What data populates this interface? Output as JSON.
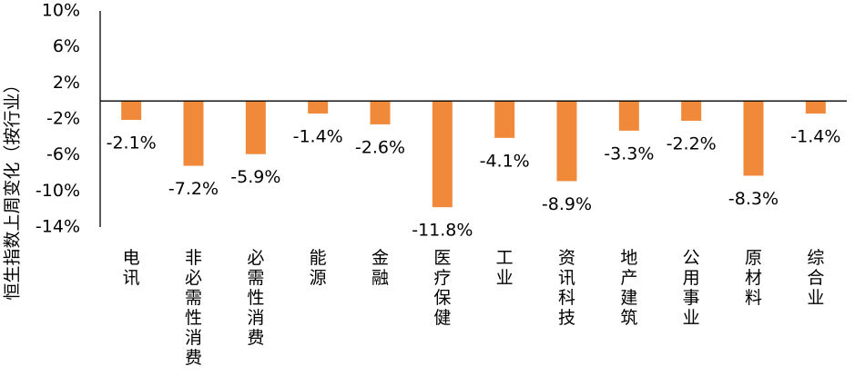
{
  "chart_data": {
    "type": "bar",
    "ylabel": "恒生指数上周变化（按行业）",
    "xlabel": "",
    "ylim": [
      -14,
      10
    ],
    "yticks": [
      10,
      6,
      2,
      -2,
      -6,
      -10,
      -14
    ],
    "ytick_labels": [
      "10%",
      "6%",
      "2%",
      "-2%",
      "-6%",
      "-10%",
      "-14%"
    ],
    "categories": [
      "电讯",
      "非必需性消费",
      "必需性消费",
      "能源",
      "金融",
      "医疗保健",
      "工业",
      "资讯科技",
      "地产建筑",
      "公用事业",
      "原材料",
      "综合业"
    ],
    "values": [
      -2.1,
      -7.2,
      -5.9,
      -1.4,
      -2.6,
      -11.8,
      -4.1,
      -8.9,
      -3.3,
      -2.2,
      -8.3,
      -1.4
    ],
    "data_labels": [
      "-2.1%",
      "-7.2%",
      "-5.9%",
      "-1.4%",
      "-2.6%",
      "-11.8%",
      "-4.1%",
      "-8.9%",
      "-3.3%",
      "-2.2%",
      "-8.3%",
      "-1.4%"
    ],
    "colors": {
      "bar": "#F08A3A",
      "axis": "#000000"
    },
    "grid": false,
    "legend": "none"
  }
}
